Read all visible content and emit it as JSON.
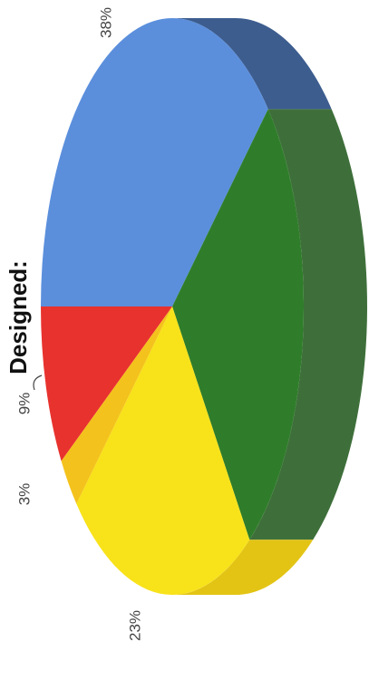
{
  "chart_data": {
    "type": "pie",
    "title": "Designed:",
    "values": [
      38,
      27,
      23,
      3,
      9
    ],
    "value_labels": [
      "38%",
      null,
      "23%",
      "3%",
      "9%"
    ],
    "colors": [
      "#5b8fdc",
      "#2f7d2a",
      "#f8e21a",
      "#f4c21c",
      "#e8322e"
    ],
    "side_colors": [
      "#3d5d8f",
      "#3e6f3a",
      "#e3c414",
      "#d9a810",
      "#b0201c"
    ],
    "start_angle": 180,
    "depth": 70
  }
}
